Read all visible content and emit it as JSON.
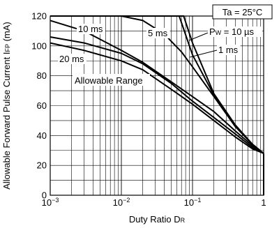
{
  "chart_data": {
    "type": "line",
    "x_scale": "log",
    "xlim": [
      0.001,
      1
    ],
    "ylim": [
      0,
      120
    ],
    "x_ticks": [
      {
        "value": 0.001,
        "base": "10",
        "exp": "−3"
      },
      {
        "value": 0.01,
        "base": "10",
        "exp": "−2"
      },
      {
        "value": 0.1,
        "base": "10",
        "exp": "−1"
      },
      {
        "value": 1,
        "base": "1",
        "exp": ""
      }
    ],
    "y_ticks": [
      0,
      20,
      40,
      60,
      80,
      100,
      120
    ],
    "xlabel": {
      "main": "Duty Ratio  D",
      "sub": "R"
    },
    "ylabel": {
      "main": "Allowable Forward Pulse Current  I",
      "sub": "FP",
      "unit": " (mA)"
    },
    "grid": true,
    "condition_label": "Ta = 25°C",
    "region_label": "Allowable Range",
    "series": [
      {
        "label_main": "P",
        "label_sub": "W",
        "label_rest": " = 10 µs",
        "x": [
          0.001,
          0.06,
          0.075,
          0.1,
          0.2,
          0.4,
          0.7,
          1
        ],
        "y": [
          120,
          120,
          120,
          102,
          68,
          47,
          34,
          28
        ]
      },
      {
        "label_main": "1 ms",
        "label_sub": "",
        "label_rest": "",
        "x": [
          0.001,
          0.05,
          0.065,
          0.1,
          0.2,
          0.4,
          0.7,
          1
        ],
        "y": [
          120,
          120,
          120,
          94,
          67,
          46,
          34,
          28
        ]
      },
      {
        "label_main": "5 ms",
        "label_sub": "",
        "label_rest": "",
        "x": [
          0.001,
          0.01,
          0.02,
          0.04,
          0.07,
          0.1,
          0.2,
          0.4,
          0.7,
          1
        ],
        "y": [
          120,
          120,
          117,
          108,
          96,
          86,
          66,
          46,
          34,
          28
        ]
      },
      {
        "label_main": "10 ms",
        "label_sub": "",
        "label_rest": "",
        "x": [
          0.001,
          0.003,
          0.01,
          0.02,
          0.05,
          0.1,
          0.2,
          0.4,
          0.7,
          1
        ],
        "y": [
          117,
          110,
          97,
          89,
          76,
          66,
          56,
          43,
          33,
          28
        ]
      },
      {
        "label_main": "20 ms",
        "label_sub": "",
        "label_rest": "",
        "x": [
          0.001,
          0.003,
          0.01,
          0.02,
          0.05,
          0.1,
          0.2,
          0.4,
          0.7,
          1
        ],
        "y": [
          106,
          102,
          95,
          88,
          75,
          63,
          52,
          41,
          32,
          28
        ]
      },
      {
        "label_main": "",
        "label_sub": "",
        "label_rest": "",
        "x": [
          0.001,
          0.003,
          0.01,
          0.02,
          0.05,
          0.1,
          0.2,
          0.4,
          0.7,
          1
        ],
        "y": [
          102,
          97,
          90,
          84,
          71,
          61,
          50,
          39,
          31,
          28
        ]
      }
    ],
    "cutoff": {
      "x": 1,
      "y_from": 28,
      "y_to": 0
    }
  }
}
